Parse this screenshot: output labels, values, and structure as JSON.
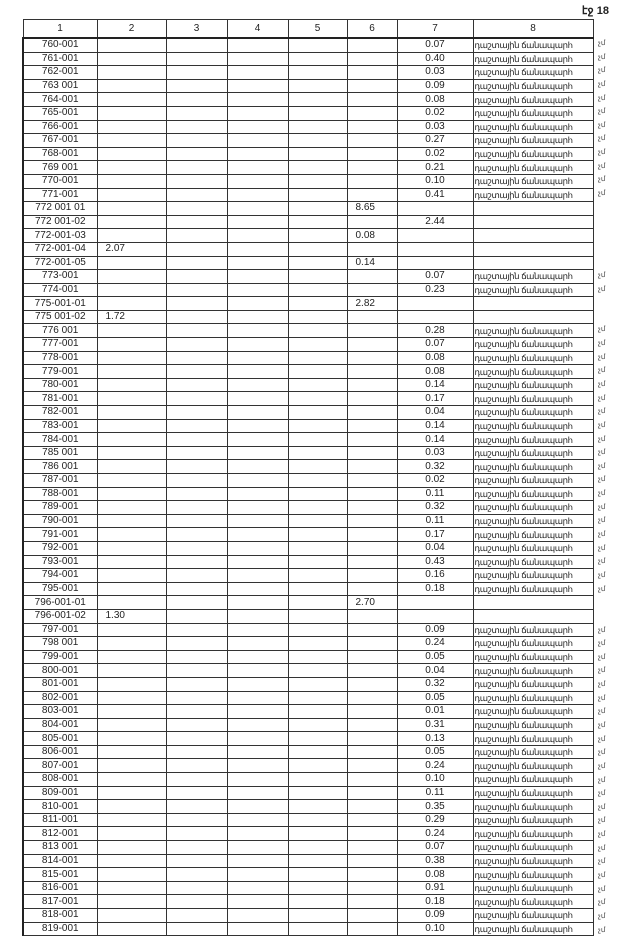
{
  "page_number": "էջ 18",
  "headers": [
    "1",
    "2",
    "3",
    "4",
    "5",
    "6",
    "7",
    "8"
  ],
  "rows": [
    {
      "c": [
        "760-001",
        "",
        "",
        "",
        "",
        "",
        "0.07",
        "դաշտային ճանապարհ"
      ],
      "n": "չմ"
    },
    {
      "c": [
        "761-001",
        "",
        "",
        "",
        "",
        "",
        "0.40",
        "դաշտային ճանապարհ"
      ],
      "n": "չմ"
    },
    {
      "c": [
        "762-001",
        "",
        "",
        "",
        "",
        "",
        "0.03",
        "դաշտային ճանապարհ"
      ],
      "n": "չմ"
    },
    {
      "c": [
        "763 001",
        "",
        "",
        "",
        "",
        "",
        "0.09",
        "դաշտային ճանապարհ"
      ],
      "n": "չմ"
    },
    {
      "c": [
        "764-001",
        "",
        "",
        "",
        "",
        "",
        "0.08",
        "դաշտային ճանապարհ"
      ],
      "n": "չմ"
    },
    {
      "c": [
        "765-001",
        "",
        "",
        "",
        "",
        "",
        "0.02",
        "դաշտային ճանապարհ"
      ],
      "n": "չմ"
    },
    {
      "c": [
        "766-001",
        "",
        "",
        "",
        "",
        "",
        "0.03",
        "դաշտային ճանապարհ"
      ],
      "n": "չմ"
    },
    {
      "c": [
        "767-001",
        "",
        "",
        "",
        "",
        "",
        "0.27",
        "դաշտային ճանապարհ"
      ],
      "n": "չմ"
    },
    {
      "c": [
        "768-001",
        "",
        "",
        "",
        "",
        "",
        "0.02",
        "դաշտային ճանապարհ"
      ],
      "n": "չմ"
    },
    {
      "c": [
        "769 001",
        "",
        "",
        "",
        "",
        "",
        "0.21",
        "դաշտային ճանապարհ"
      ],
      "n": "չմ"
    },
    {
      "c": [
        "770-001",
        "",
        "",
        "",
        "",
        "",
        "0.10",
        "դաշտային ճանապարհ"
      ],
      "n": "չմ"
    },
    {
      "c": [
        "771-001",
        "",
        "",
        "",
        "",
        "",
        "0.41",
        "դաշտային ճանապարհ"
      ],
      "n": "չմ"
    },
    {
      "c": [
        "772 001 01",
        "",
        "",
        "",
        "",
        "8.65",
        "",
        ""
      ],
      "n": ""
    },
    {
      "c": [
        "772 001-02",
        "",
        "",
        "",
        "",
        "",
        "2.44",
        ""
      ],
      "n": ""
    },
    {
      "c": [
        "772-001-03",
        "",
        "",
        "",
        "",
        "0.08",
        "",
        ""
      ],
      "n": ""
    },
    {
      "c": [
        "772-001-04",
        "2.07",
        "",
        "",
        "",
        "",
        "",
        ""
      ],
      "n": ""
    },
    {
      "c": [
        "772-001-05",
        "",
        "",
        "",
        "",
        "0.14",
        "",
        ""
      ],
      "n": ""
    },
    {
      "c": [
        "773-001",
        "",
        "",
        "",
        "",
        "",
        "0.07",
        "դաշտային ճանապարհ"
      ],
      "n": "չմ"
    },
    {
      "c": [
        "774-001",
        "",
        "",
        "",
        "",
        "",
        "0.23",
        "դաշտային ճանապարհ"
      ],
      "n": "չմ"
    },
    {
      "c": [
        "775-001-01",
        "",
        "",
        "",
        "",
        "2.82",
        "",
        ""
      ],
      "n": ""
    },
    {
      "c": [
        "775 001-02",
        "1.72",
        "",
        "",
        "",
        "",
        "",
        ""
      ],
      "n": ""
    },
    {
      "c": [
        "776 001",
        "",
        "",
        "",
        "",
        "",
        "0.28",
        "դաշտային ճանապարհ"
      ],
      "n": "չմ"
    },
    {
      "c": [
        "777-001",
        "",
        "",
        "",
        "",
        "",
        "0.07",
        "դաշտային ճանապարհ"
      ],
      "n": "չմ"
    },
    {
      "c": [
        "778-001",
        "",
        "",
        "",
        "",
        "",
        "0.08",
        "դաշտային ճանապարհ"
      ],
      "n": "չմ"
    },
    {
      "c": [
        "779-001",
        "",
        "",
        "",
        "",
        "",
        "0.08",
        "դաշտային ճանապարհ"
      ],
      "n": "չմ"
    },
    {
      "c": [
        "780-001",
        "",
        "",
        "",
        "",
        "",
        "0.14",
        "դաշտային ճանապարհ"
      ],
      "n": "չմ"
    },
    {
      "c": [
        "781-001",
        "",
        "",
        "",
        "",
        "",
        "0.17",
        "դաշտային ճանապարհ"
      ],
      "n": "չմ"
    },
    {
      "c": [
        "782-001",
        "",
        "",
        "",
        "",
        "",
        "0.04",
        "դաշտային ճանապարհ"
      ],
      "n": "չմ"
    },
    {
      "c": [
        "783-001",
        "",
        "",
        "",
        "",
        "",
        "0.14",
        "դաշտային ճանապարհ"
      ],
      "n": "չմ"
    },
    {
      "c": [
        "784-001",
        "",
        "",
        "",
        "",
        "",
        "0.14",
        "դաշտային ճանապարհ"
      ],
      "n": "չմ"
    },
    {
      "c": [
        "785 001",
        "",
        "",
        "",
        "",
        "",
        "0.03",
        "դաշտային ճանապարհ"
      ],
      "n": "չմ"
    },
    {
      "c": [
        "786 001",
        "",
        "",
        "",
        "",
        "",
        "0.32",
        "դաշտային ճանապարհ"
      ],
      "n": "չմ"
    },
    {
      "c": [
        "787-001",
        "",
        "",
        "",
        "",
        "",
        "0.02",
        "դաշտային ճանապարհ"
      ],
      "n": "չմ"
    },
    {
      "c": [
        "788-001",
        "",
        "",
        "",
        "",
        "",
        "0.11",
        "դաշտային ճանապարհ"
      ],
      "n": "չմ"
    },
    {
      "c": [
        "789-001",
        "",
        "",
        "",
        "",
        "",
        "0.32",
        "դաշտային ճանապարհ"
      ],
      "n": "չմ"
    },
    {
      "c": [
        "790-001",
        "",
        "",
        "",
        "",
        "",
        "0.11",
        "դաշտային ճանապարհ"
      ],
      "n": "չմ"
    },
    {
      "c": [
        "791-001",
        "",
        "",
        "",
        "",
        "",
        "0.17",
        "դաշտային ճանապարհ"
      ],
      "n": "չմ"
    },
    {
      "c": [
        "792-001",
        "",
        "",
        "",
        "",
        "",
        "0.04",
        "դաշտային ճանապարհ"
      ],
      "n": "չմ"
    },
    {
      "c": [
        "793-001",
        "",
        "",
        "",
        "",
        "",
        "0.43",
        "դաշտային ճանապարհ"
      ],
      "n": "չմ"
    },
    {
      "c": [
        "794-001",
        "",
        "",
        "",
        "",
        "",
        "0.16",
        "դաշտային ճանապարհ"
      ],
      "n": "չմ"
    },
    {
      "c": [
        "795-001",
        "",
        "",
        "",
        "",
        "",
        "0.18",
        "դաշտային ճանապարհ"
      ],
      "n": "չմ"
    },
    {
      "c": [
        "796-001-01",
        "",
        "",
        "",
        "",
        "2.70",
        "",
        ""
      ],
      "n": ""
    },
    {
      "c": [
        "796-001-02",
        "1.30",
        "",
        "",
        "",
        "",
        "",
        ""
      ],
      "n": ""
    },
    {
      "c": [
        "797-001",
        "",
        "",
        "",
        "",
        "",
        "0.09",
        "դաշտային ճանապարհ"
      ],
      "n": "չմ"
    },
    {
      "c": [
        "798 001",
        "",
        "",
        "",
        "",
        "",
        "0.24",
        "դաշտային ճանապարհ"
      ],
      "n": "չմ"
    },
    {
      "c": [
        "799-001",
        "",
        "",
        "",
        "",
        "",
        "0.05",
        "դաշտային ճանապարհ"
      ],
      "n": "չմ"
    },
    {
      "c": [
        "800-001",
        "",
        "",
        "",
        "",
        "",
        "0.04",
        "դաշտային ճանապարհ"
      ],
      "n": "չմ"
    },
    {
      "c": [
        "801-001",
        "",
        "",
        "",
        "",
        "",
        "0.32",
        "դաշտային ճանապարհ"
      ],
      "n": "չմ"
    },
    {
      "c": [
        "802-001",
        "",
        "",
        "",
        "",
        "",
        "0.05",
        "դաշտային ճանապարհ"
      ],
      "n": "չմ"
    },
    {
      "c": [
        "803-001",
        "",
        "",
        "",
        "",
        "",
        "0.01",
        "դաշտային ճանապարհ"
      ],
      "n": "չմ"
    },
    {
      "c": [
        "804-001",
        "",
        "",
        "",
        "",
        "",
        "0.31",
        "դաշտային ճանապարհ"
      ],
      "n": "չմ"
    },
    {
      "c": [
        "805-001",
        "",
        "",
        "",
        "",
        "",
        "0.13",
        "դաշտային ճանապարհ"
      ],
      "n": "չմ"
    },
    {
      "c": [
        "806-001",
        "",
        "",
        "",
        "",
        "",
        "0.05",
        "դաշտային ճանապարհ"
      ],
      "n": "չմ"
    },
    {
      "c": [
        "807-001",
        "",
        "",
        "",
        "",
        "",
        "0.24",
        "դաշտային ճանապարհ"
      ],
      "n": "չմ"
    },
    {
      "c": [
        "808-001",
        "",
        "",
        "",
        "",
        "",
        "0.10",
        "դաշտային ճանապարհ"
      ],
      "n": "չմ"
    },
    {
      "c": [
        "809-001",
        "",
        "",
        "",
        "",
        "",
        "0.11",
        "դաշտային ճանապարհ"
      ],
      "n": "չմ"
    },
    {
      "c": [
        "810-001",
        "",
        "",
        "",
        "",
        "",
        "0.35",
        "դաշտային ճանապարհ"
      ],
      "n": "չմ"
    },
    {
      "c": [
        "811-001",
        "",
        "",
        "",
        "",
        "",
        "0.29",
        "դաշտային ճանապարհ"
      ],
      "n": "չմ"
    },
    {
      "c": [
        "812-001",
        "",
        "",
        "",
        "",
        "",
        "0.24",
        "դաշտային ճանապարհ"
      ],
      "n": "չմ"
    },
    {
      "c": [
        "813 001",
        "",
        "",
        "",
        "",
        "",
        "0.07",
        "դաշտային ճանապարհ"
      ],
      "n": "չմ"
    },
    {
      "c": [
        "814-001",
        "",
        "",
        "",
        "",
        "",
        "0.38",
        "դաշտային ճանապարհ"
      ],
      "n": "չմ"
    },
    {
      "c": [
        "815-001",
        "",
        "",
        "",
        "",
        "",
        "0.08",
        "դաշտային ճանապարհ"
      ],
      "n": "չմ"
    },
    {
      "c": [
        "816-001",
        "",
        "",
        "",
        "",
        "",
        "0.91",
        "դաշտային ճանապարհ"
      ],
      "n": "չմ"
    },
    {
      "c": [
        "817-001",
        "",
        "",
        "",
        "",
        "",
        "0.18",
        "դաշտային ճանապարհ"
      ],
      "n": "չմ"
    },
    {
      "c": [
        "818-001",
        "",
        "",
        "",
        "",
        "",
        "0.09",
        "դաշտային ճանապարհ"
      ],
      "n": "չմ"
    },
    {
      "c": [
        "819-001",
        "",
        "",
        "",
        "",
        "",
        "0.10",
        "դաշտային ճանապարհ"
      ],
      "n": "չմ"
    }
  ]
}
